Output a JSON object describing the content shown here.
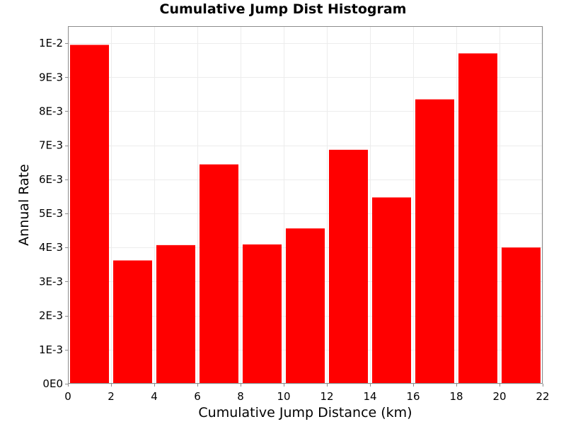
{
  "chart_data": {
    "type": "bar",
    "title": "Cumulative Jump Dist Histogram",
    "xlabel": "Cumulative Jump Distance (km)",
    "ylabel": "Annual Rate",
    "xlim": [
      0,
      22
    ],
    "ylim": [
      0,
      0.0105
    ],
    "xticks": [
      0,
      2,
      4,
      6,
      8,
      10,
      12,
      14,
      16,
      18,
      20,
      22
    ],
    "xtick_labels": [
      "0",
      "2",
      "4",
      "6",
      "8",
      "10",
      "12",
      "14",
      "16",
      "18",
      "20",
      "22"
    ],
    "yticks": [
      0,
      0.001,
      0.002,
      0.003,
      0.004,
      0.005,
      0.006,
      0.007,
      0.008,
      0.009,
      0.01
    ],
    "ytick_labels": [
      "0E0",
      "1E-3",
      "2E-3",
      "3E-3",
      "4E-3",
      "5E-3",
      "6E-3",
      "7E-3",
      "8E-3",
      "9E-3",
      "1E-2"
    ],
    "grid": true,
    "bar_color": "#ff0000",
    "bins": [
      {
        "x0": 0,
        "x1": 2,
        "value": 0.00995
      },
      {
        "x0": 2,
        "x1": 4,
        "value": 0.00362
      },
      {
        "x0": 4,
        "x1": 6,
        "value": 0.00407
      },
      {
        "x0": 6,
        "x1": 8,
        "value": 0.00644
      },
      {
        "x0": 8,
        "x1": 10,
        "value": 0.00409
      },
      {
        "x0": 10,
        "x1": 12,
        "value": 0.00456
      },
      {
        "x0": 12,
        "x1": 14,
        "value": 0.00687
      },
      {
        "x0": 14,
        "x1": 16,
        "value": 0.00547
      },
      {
        "x0": 16,
        "x1": 18,
        "value": 0.00835
      },
      {
        "x0": 18,
        "x1": 20,
        "value": 0.0097
      },
      {
        "x0": 20,
        "x1": 22,
        "value": 0.004
      }
    ]
  }
}
